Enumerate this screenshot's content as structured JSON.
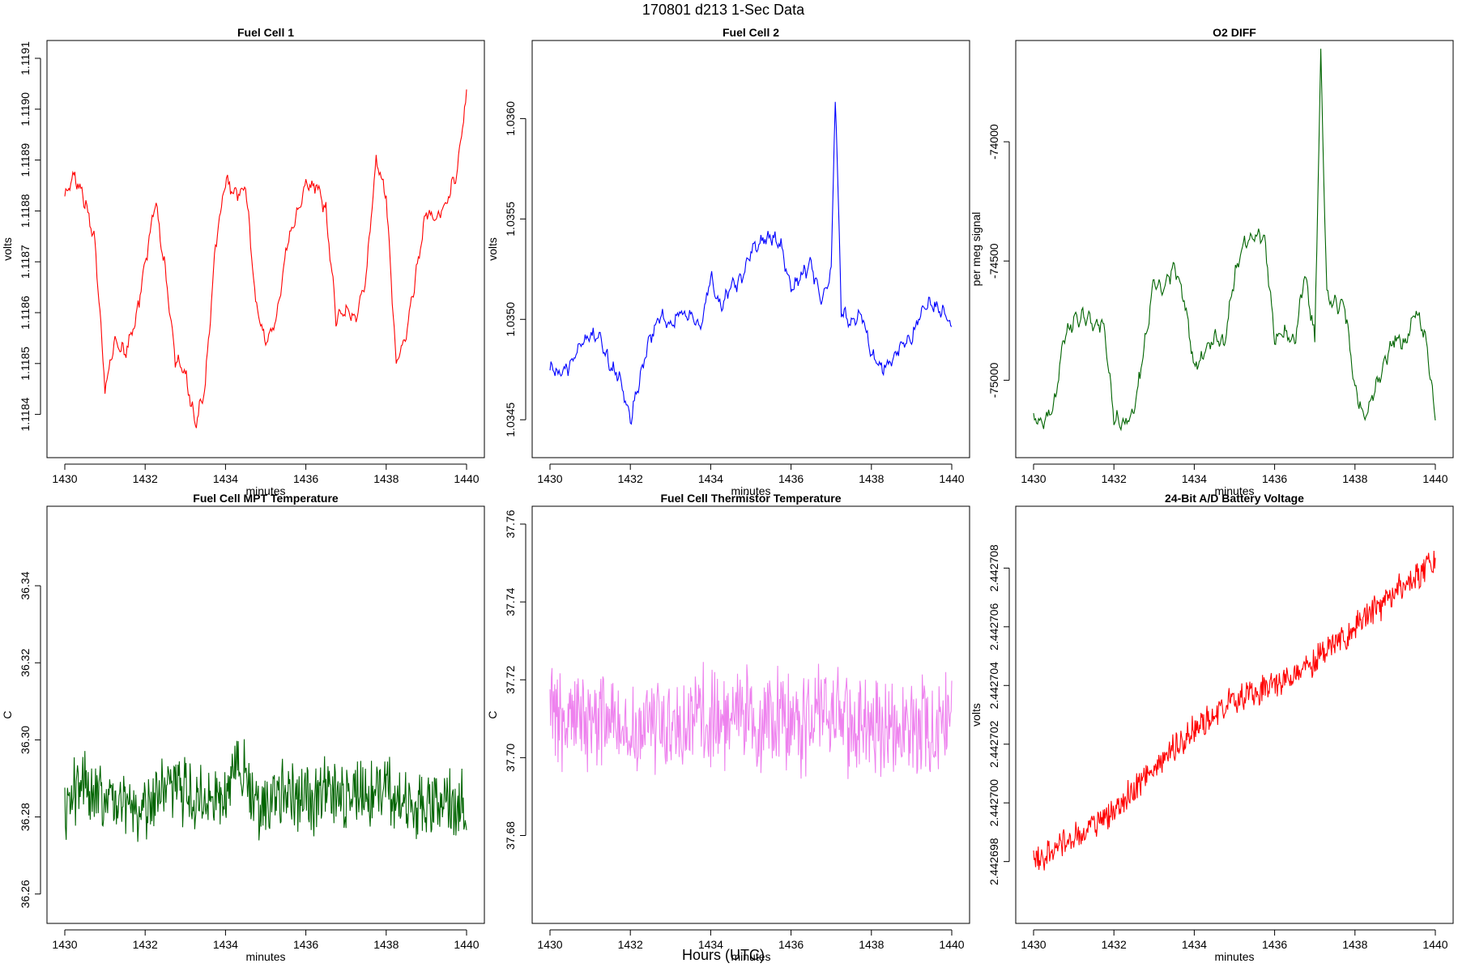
{
  "title": "170801   d213   1-Sec Data",
  "xlabel": "Hours (UTC)",
  "chart_data": [
    {
      "type": "line",
      "title": "Fuel Cell 1",
      "xlabel": "minutes",
      "ylabel": "volts",
      "color": "#ff0000",
      "xlim": [
        1430,
        1440
      ],
      "ylim": [
        1.11835,
        1.1191
      ],
      "xticks": [
        1430,
        1432,
        1434,
        1436,
        1438,
        1440
      ],
      "yticks": [
        1.1184,
        1.1185,
        1.1186,
        1.1187,
        1.1188,
        1.1189,
        1.119,
        1.1191
      ],
      "ytick_labels": [
        "1.1184",
        "1.1185",
        "1.1186",
        "1.1187",
        "1.1188",
        "1.1189",
        "1.1190",
        "1.1191"
      ],
      "x": [
        1430.0,
        1430.25,
        1430.5,
        1430.75,
        1431.0,
        1431.25,
        1431.5,
        1431.75,
        1432.0,
        1432.25,
        1432.5,
        1432.75,
        1433.0,
        1433.25,
        1433.5,
        1433.75,
        1434.0,
        1434.25,
        1434.5,
        1434.75,
        1435.0,
        1435.25,
        1435.5,
        1435.75,
        1436.0,
        1436.25,
        1436.5,
        1436.75,
        1437.0,
        1437.25,
        1437.5,
        1437.75,
        1438.0,
        1438.25,
        1438.5,
        1438.75,
        1439.0,
        1439.25,
        1439.5,
        1439.75,
        1440.0
      ],
      "y": [
        1.11883,
        1.11887,
        1.11882,
        1.11874,
        1.11845,
        1.11855,
        1.11852,
        1.11858,
        1.11869,
        1.11882,
        1.11868,
        1.11851,
        1.11848,
        1.11838,
        1.11846,
        1.11873,
        1.11886,
        1.11883,
        1.11885,
        1.11862,
        1.11854,
        1.11858,
        1.11872,
        1.11879,
        1.11885,
        1.11885,
        1.1188,
        1.11859,
        1.1186,
        1.11859,
        1.11867,
        1.1189,
        1.11883,
        1.1185,
        1.11856,
        1.11868,
        1.1188,
        1.11878,
        1.11882,
        1.11887,
        1.11903
      ]
    },
    {
      "type": "line",
      "title": "Fuel Cell 2",
      "xlabel": "minutes",
      "ylabel": "volts",
      "color": "#0000ff",
      "xlim": [
        1430,
        1440
      ],
      "ylim": [
        1.0344,
        1.0363
      ],
      "xticks": [
        1430,
        1432,
        1434,
        1436,
        1438,
        1440
      ],
      "yticks": [
        1.0345,
        1.035,
        1.0355,
        1.036
      ],
      "ytick_labels": [
        "1.0345",
        "1.0350",
        "1.0355",
        "1.0360"
      ],
      "x": [
        1430.0,
        1430.25,
        1430.5,
        1430.75,
        1431.0,
        1431.25,
        1431.5,
        1431.75,
        1432.0,
        1432.25,
        1432.5,
        1432.75,
        1433.0,
        1433.25,
        1433.5,
        1433.75,
        1434.0,
        1434.25,
        1434.5,
        1434.75,
        1435.0,
        1435.25,
        1435.5,
        1435.75,
        1436.0,
        1436.25,
        1436.5,
        1436.75,
        1437.0,
        1437.1,
        1437.25,
        1437.5,
        1437.75,
        1438.0,
        1438.25,
        1438.5,
        1438.75,
        1439.0,
        1439.25,
        1439.5,
        1439.75,
        1440.0
      ],
      "y": [
        1.03475,
        1.03472,
        1.03477,
        1.03488,
        1.03492,
        1.0349,
        1.03477,
        1.03471,
        1.0345,
        1.03472,
        1.03491,
        1.03503,
        1.03496,
        1.03504,
        1.03501,
        1.03496,
        1.03521,
        1.03505,
        1.03516,
        1.03519,
        1.03534,
        1.03539,
        1.03541,
        1.03537,
        1.03514,
        1.03522,
        1.03527,
        1.03509,
        1.03524,
        1.03612,
        1.03505,
        1.03497,
        1.03504,
        1.03482,
        1.03476,
        1.0348,
        1.03487,
        1.03491,
        1.03505,
        1.03508,
        1.03504,
        1.03496
      ]
    },
    {
      "type": "line",
      "title": "O2 DIFF",
      "xlabel": "minutes",
      "ylabel": "per meg signal",
      "color": "#006400",
      "xlim": [
        1430,
        1440
      ],
      "ylim": [
        -75250,
        -73650
      ],
      "xticks": [
        1430,
        1432,
        1434,
        1436,
        1438,
        1440
      ],
      "yticks": [
        -75000,
        -74500,
        -74000
      ],
      "ytick_labels": [
        "-75000",
        "-74500",
        "-74000"
      ],
      "x": [
        1430.0,
        1430.25,
        1430.5,
        1430.75,
        1431.0,
        1431.25,
        1431.5,
        1431.75,
        1432.0,
        1432.25,
        1432.5,
        1432.75,
        1433.0,
        1433.25,
        1433.5,
        1433.75,
        1434.0,
        1434.25,
        1434.5,
        1434.75,
        1435.0,
        1435.25,
        1435.5,
        1435.75,
        1436.0,
        1436.25,
        1436.5,
        1436.75,
        1437.0,
        1437.15,
        1437.3,
        1437.5,
        1437.75,
        1438.0,
        1438.25,
        1438.5,
        1438.75,
        1439.0,
        1439.25,
        1439.5,
        1439.75,
        1440.0
      ],
      "y": [
        -75160,
        -75170,
        -75120,
        -74820,
        -74750,
        -74730,
        -74760,
        -74770,
        -75150,
        -75190,
        -75130,
        -74870,
        -74580,
        -74620,
        -74520,
        -74660,
        -74950,
        -74890,
        -74820,
        -74850,
        -74560,
        -74420,
        -74390,
        -74400,
        -74820,
        -74800,
        -74840,
        -74550,
        -74830,
        -73640,
        -74640,
        -74680,
        -74700,
        -75030,
        -75160,
        -75030,
        -74920,
        -74820,
        -74850,
        -74700,
        -74820,
        -75150
      ]
    },
    {
      "type": "line",
      "title": "Fuel Cell MPT Temperature",
      "xlabel": "minutes",
      "ylabel": "C",
      "color": "#006400",
      "xlim": [
        1430,
        1440
      ],
      "ylim": [
        36.257,
        36.356
      ],
      "xticks": [
        1430,
        1432,
        1434,
        1436,
        1438,
        1440
      ],
      "yticks": [
        36.26,
        36.28,
        36.3,
        36.32,
        36.34
      ],
      "ytick_labels": [
        "36.26",
        "36.28",
        "36.30",
        "36.32",
        "36.34"
      ],
      "x": [
        1430.0,
        1430.5,
        1431.0,
        1431.5,
        1432.0,
        1432.5,
        1433.0,
        1433.5,
        1434.0,
        1434.35,
        1434.7,
        1435.0,
        1435.5,
        1436.0,
        1436.5,
        1437.0,
        1437.5,
        1438.0,
        1438.5,
        1439.0,
        1439.5,
        1440.0
      ],
      "y": [
        36.281,
        36.29,
        36.285,
        36.283,
        36.282,
        36.288,
        36.286,
        36.284,
        36.287,
        36.296,
        36.285,
        36.283,
        36.286,
        36.284,
        36.287,
        36.285,
        36.288,
        36.286,
        36.284,
        36.282,
        36.285,
        36.282
      ],
      "noise": 0.011
    },
    {
      "type": "line",
      "title": "Fuel Cell Thermistor Temperature",
      "xlabel": "minutes",
      "ylabel": "C",
      "color": "#ee82ee",
      "xlim": [
        1430,
        1440
      ],
      "ylim": [
        37.662,
        37.76
      ],
      "xticks": [
        1430,
        1432,
        1434,
        1436,
        1438,
        1440
      ],
      "yticks": [
        37.68,
        37.7,
        37.72,
        37.74,
        37.76
      ],
      "ytick_labels": [
        "37.68",
        "37.70",
        "37.72",
        "37.74",
        "37.76"
      ],
      "x": [
        1430.0,
        1431.0,
        1432.0,
        1433.0,
        1434.0,
        1435.0,
        1436.0,
        1437.0,
        1438.0,
        1439.0,
        1440.0
      ],
      "y": [
        37.711,
        37.71,
        37.708,
        37.709,
        37.711,
        37.71,
        37.709,
        37.71,
        37.708,
        37.709,
        37.707
      ],
      "noise": 0.016
    },
    {
      "type": "line",
      "title": "24-Bit A/D Battery Voltage",
      "xlabel": "minutes",
      "ylabel": "volts",
      "color": "#ff0000",
      "xlim": [
        1430,
        1440
      ],
      "ylim": [
        2.4426965,
        2.4427095
      ],
      "xticks": [
        1430,
        1432,
        1434,
        1436,
        1438,
        1440
      ],
      "yticks": [
        2.442698,
        2.4427,
        2.442702,
        2.442704,
        2.442706,
        2.442708
      ],
      "ytick_labels": [
        "2.442698",
        "2.442700",
        "2.442702",
        "2.442704",
        "2.442706",
        "2.442708"
      ],
      "x": [
        1430.0,
        1431.0,
        1432.0,
        1433.0,
        1434.0,
        1435.0,
        1436.0,
        1437.0,
        1438.0,
        1439.0,
        1440.0
      ],
      "y": [
        2.442698,
        2.4426988,
        2.4426997,
        2.4427012,
        2.4427025,
        2.4427035,
        2.442704,
        2.4427049,
        2.442706,
        2.4427072,
        2.4427082
      ],
      "noise": 6e-07
    }
  ]
}
